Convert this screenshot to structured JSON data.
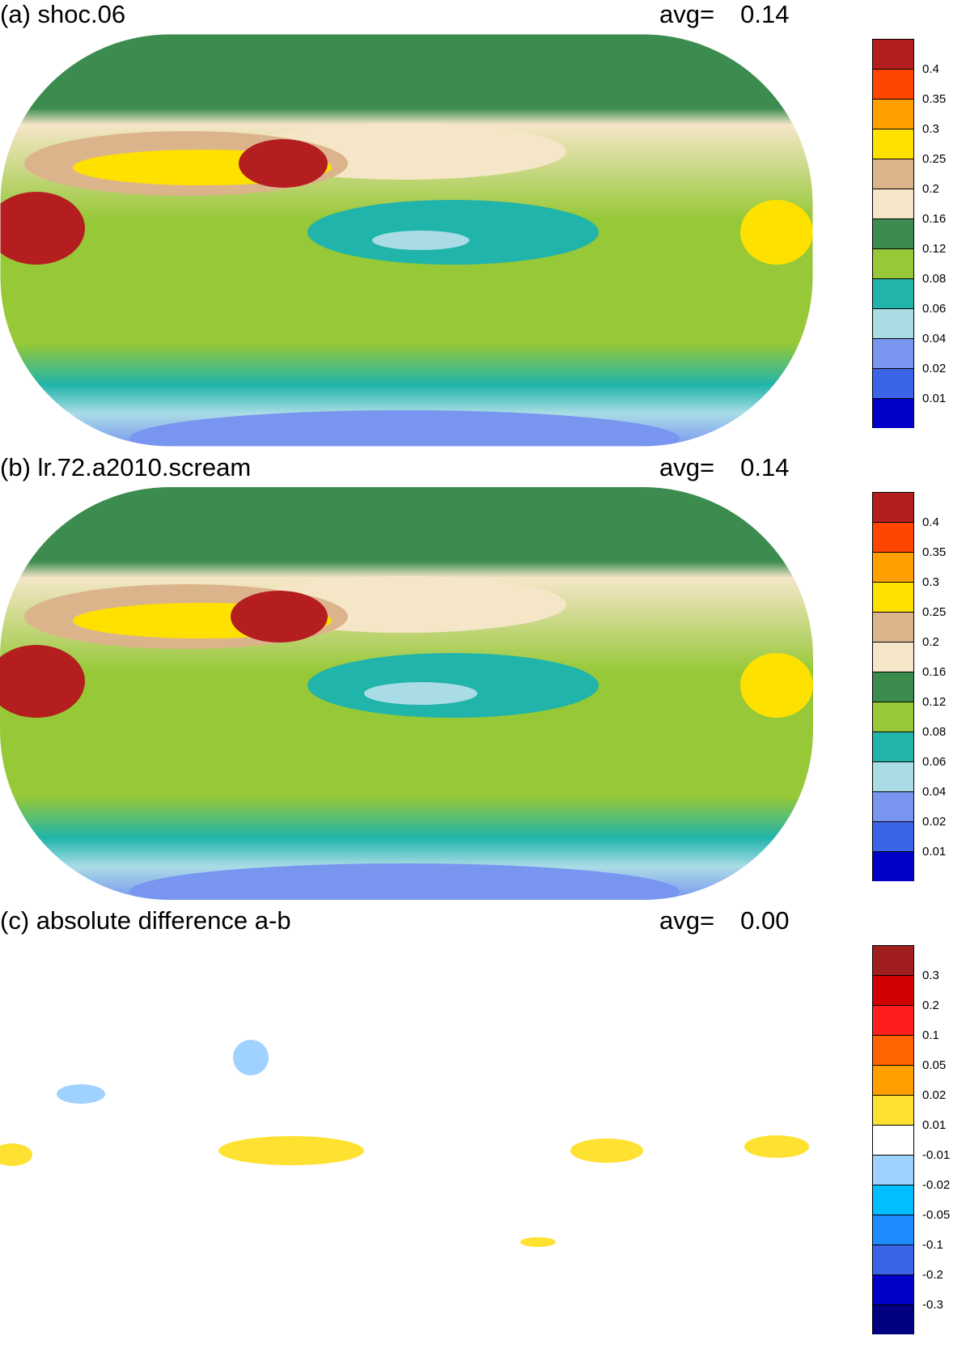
{
  "figure": {
    "panels": [
      {
        "id": "a",
        "title": "(a) shoc.06",
        "avg_label": "avg=",
        "avg_value": "0.14",
        "colorbar": {
          "colors": [
            "#0000c8",
            "#3c64e6",
            "#7896f0",
            "#aadce6",
            "#20b4aa",
            "#96c837",
            "#3c8c50",
            "#f5e6c8",
            "#dcb48c",
            "#ffe100",
            "#ffa000",
            "#ff4600",
            "#b41e1e"
          ],
          "ticks": [
            "0.01",
            "0.02",
            "0.04",
            "0.06",
            "0.08",
            "0.12",
            "0.16",
            "0.2",
            "0.25",
            "0.3",
            "0.35",
            "0.4"
          ]
        }
      },
      {
        "id": "b",
        "title": "(b) lr.72.a2010.scream",
        "avg_label": "avg=",
        "avg_value": "0.14",
        "colorbar": {
          "colors": [
            "#0000c8",
            "#3c64e6",
            "#7896f0",
            "#aadce6",
            "#20b4aa",
            "#96c837",
            "#3c8c50",
            "#f5e6c8",
            "#dcb48c",
            "#ffe100",
            "#ffa000",
            "#ff4600",
            "#b41e1e"
          ],
          "ticks": [
            "0.01",
            "0.02",
            "0.04",
            "0.06",
            "0.08",
            "0.12",
            "0.16",
            "0.2",
            "0.25",
            "0.3",
            "0.35",
            "0.4"
          ]
        }
      },
      {
        "id": "c",
        "title": "(c) absolute difference a-b",
        "avg_label": "avg=",
        "avg_value": "0.00",
        "colorbar": {
          "colors": [
            "#000080",
            "#0000c8",
            "#3c64e6",
            "#1e8cff",
            "#00beff",
            "#a0d2ff",
            "#ffffff",
            "#ffe132",
            "#ffa000",
            "#ff6400",
            "#ff1e1e",
            "#d20000",
            "#a01e1e"
          ],
          "ticks": [
            "-0.3",
            "-0.2",
            "-0.1",
            "-0.05",
            "-0.02",
            "-0.01",
            "0.01",
            "0.02",
            "0.05",
            "0.1",
            "0.2",
            "0.3"
          ]
        }
      }
    ]
  }
}
